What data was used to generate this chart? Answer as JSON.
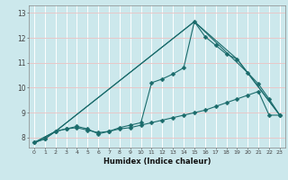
{
  "title": "",
  "xlabel": "Humidex (Indice chaleur)",
  "ylabel": "",
  "background_color": "#cce8ec",
  "grid_color_v": "#ffffff",
  "grid_color_h": "#e8c8c8",
  "line_color": "#1a6b6b",
  "xlim": [
    -0.5,
    23.5
  ],
  "ylim": [
    7.6,
    13.3
  ],
  "yticks": [
    8,
    9,
    10,
    11,
    12,
    13
  ],
  "xticks": [
    0,
    1,
    2,
    3,
    4,
    5,
    6,
    7,
    8,
    9,
    10,
    11,
    12,
    13,
    14,
    15,
    16,
    17,
    18,
    19,
    20,
    21,
    22,
    23
  ],
  "series": [
    {
      "x": [
        0,
        1,
        2,
        3,
        4,
        5,
        6,
        7,
        8,
        9,
        10,
        11,
        12,
        13,
        14,
        15,
        16,
        17,
        18,
        19,
        20,
        21,
        22,
        23
      ],
      "y": [
        7.8,
        7.95,
        8.25,
        8.35,
        8.4,
        8.3,
        8.2,
        8.25,
        8.35,
        8.4,
        8.5,
        8.6,
        8.7,
        8.8,
        8.9,
        9.0,
        9.1,
        9.25,
        9.4,
        9.55,
        9.7,
        9.85,
        8.9,
        8.9
      ],
      "marker": "D",
      "markersize": 2.5,
      "with_markers": true
    },
    {
      "x": [
        0,
        1,
        2,
        3,
        4,
        5,
        6,
        7,
        8,
        9,
        10,
        11,
        12,
        13,
        14,
        15,
        16,
        17,
        18,
        19,
        20,
        21,
        22,
        23
      ],
      "y": [
        7.8,
        7.95,
        8.25,
        8.35,
        8.45,
        8.35,
        8.15,
        8.25,
        8.4,
        8.5,
        8.6,
        10.2,
        10.35,
        10.55,
        10.8,
        12.65,
        12.05,
        11.7,
        11.35,
        11.15,
        10.6,
        10.15,
        9.55,
        8.9
      ],
      "marker": "D",
      "markersize": 2.5,
      "with_markers": true
    },
    {
      "x": [
        0,
        2,
        15,
        19,
        23
      ],
      "y": [
        7.8,
        8.25,
        12.65,
        11.15,
        8.9
      ],
      "marker": null,
      "with_markers": false
    },
    {
      "x": [
        0,
        2,
        15,
        20,
        23
      ],
      "y": [
        7.8,
        8.25,
        12.65,
        10.6,
        8.9
      ],
      "marker": null,
      "with_markers": false
    }
  ]
}
